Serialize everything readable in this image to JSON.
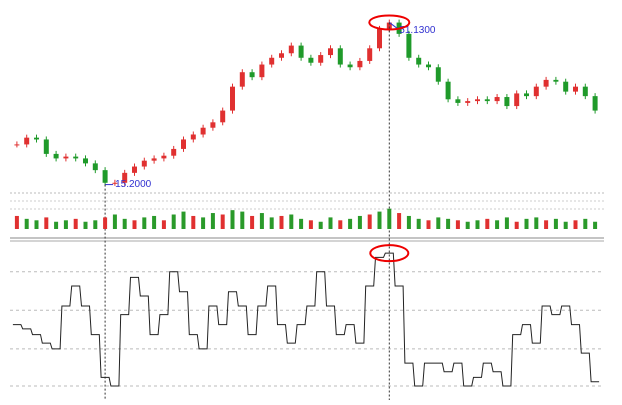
{
  "chart_data": [
    {
      "type": "candlestick",
      "name": "price",
      "up_color": "#e03030",
      "down_color": "#1f9a2a",
      "ylim": [
        14,
        53
      ],
      "values": [
        24.1,
        25.6,
        25.2,
        22,
        21,
        21.4,
        21,
        19.9,
        18.4,
        15.6,
        15.6,
        17.8,
        19.2,
        20.5,
        21,
        21.6,
        23.1,
        25.2,
        26.3,
        27.8,
        29,
        31.6,
        36.9,
        40.1,
        39,
        41.8,
        43.3,
        44.3,
        46,
        43.3,
        42.2,
        43.9,
        45.4,
        41.8,
        41.2,
        42.6,
        45.4,
        49.7,
        51.1,
        48.6,
        43.3,
        41.8,
        41.2,
        38,
        34.1,
        33.3,
        33.7,
        34.1,
        33.7,
        34.6,
        32.6,
        35.4,
        34.8,
        36.9,
        38.4,
        38,
        35.8,
        36.9,
        34.8,
        31.6
      ],
      "annotations": [
        {
          "label": "15.2000",
          "value": 15.2
        },
        {
          "label": "51.1300",
          "value": 51.13
        }
      ]
    },
    {
      "type": "bar",
      "name": "volume",
      "color": "#2a9a2a",
      "ylim": [
        0,
        20
      ],
      "values": [
        9,
        7,
        6,
        8,
        5,
        6,
        7,
        5,
        6,
        8,
        10,
        7,
        6,
        8,
        9,
        6,
        10,
        12,
        9,
        8,
        11,
        10,
        13,
        12,
        9,
        11,
        8,
        9,
        10,
        7,
        6,
        5,
        8,
        6,
        7,
        9,
        10,
        12,
        14,
        11,
        9,
        7,
        6,
        8,
        7,
        6,
        5,
        6,
        7,
        6,
        8,
        5,
        7,
        8,
        6,
        7,
        5,
        6,
        7,
        5
      ]
    },
    {
      "type": "line",
      "name": "indicator",
      "color": "#222",
      "ylim": [
        0,
        105
      ],
      "yticks": [
        7,
        33,
        60,
        87
      ],
      "values": [
        50,
        47,
        43,
        37,
        33,
        63,
        77,
        63,
        43,
        13,
        7,
        57,
        83,
        70,
        43,
        57,
        87,
        73,
        43,
        33,
        63,
        50,
        73,
        63,
        43,
        63,
        77,
        50,
        37,
        50,
        63,
        87,
        63,
        43,
        50,
        37,
        77,
        97,
        100,
        77,
        23,
        7,
        23,
        23,
        17,
        23,
        7,
        13,
        23,
        17,
        7,
        43,
        50,
        37,
        63,
        57,
        63,
        50,
        30,
        10
      ]
    }
  ]
}
